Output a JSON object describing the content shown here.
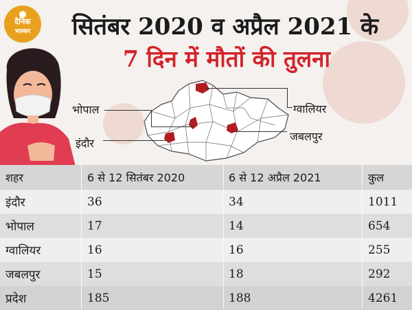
{
  "logo": {
    "line1": "दैनिक",
    "line2": "भास्कर",
    "color": "#e9a11d"
  },
  "title": {
    "line1": "सितंबर 2020 व अप्रैल 2021 के",
    "line2": "7 दिन में मौतों की तुलना",
    "line2_color": "#d3222a"
  },
  "map": {
    "highlight_color": "#b01c22",
    "labels": {
      "bhopal": "भोपाल",
      "indore": "इंदौर",
      "gwalior": "ग्वालियर",
      "jabalpur": "जबलपुर"
    }
  },
  "table": {
    "headers": [
      "शहर",
      "6 से 12 सितंबर 2020",
      "6 से 12 अप्रैल 2021",
      "कुल"
    ],
    "rows": [
      [
        "इंदौर",
        "36",
        "34",
        "1011"
      ],
      [
        "भोपाल",
        "17",
        "14",
        "654"
      ],
      [
        "ग्वालियर",
        "16",
        "16",
        "255"
      ],
      [
        "जबलपुर",
        "15",
        "18",
        "292"
      ],
      [
        "प्रदेश",
        "185",
        "188",
        "4261"
      ]
    ]
  }
}
